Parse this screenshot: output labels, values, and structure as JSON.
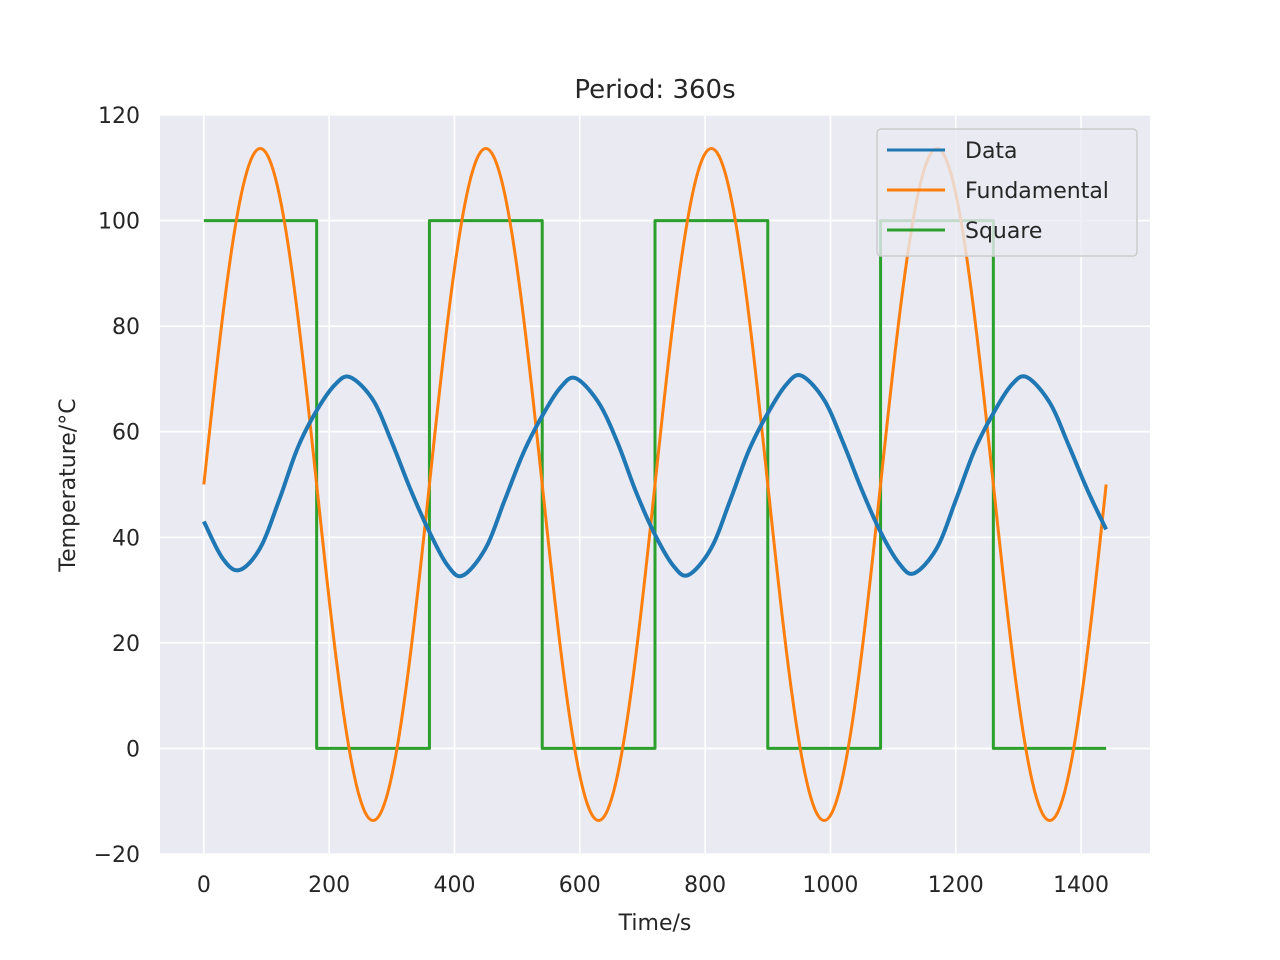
{
  "chart_data": {
    "type": "line",
    "title": "Period: 360s",
    "xlabel": "Time/s",
    "ylabel": "Temperature/°C",
    "xlim": [
      -70,
      1510
    ],
    "ylim": [
      -20,
      120
    ],
    "xticks": [
      0,
      200,
      400,
      600,
      800,
      1000,
      1200,
      1400
    ],
    "yticks": [
      -20,
      0,
      20,
      40,
      60,
      80,
      100,
      120
    ],
    "xtick_labels": [
      "0",
      "200",
      "400",
      "600",
      "800",
      "1000",
      "1200",
      "1400"
    ],
    "ytick_labels": [
      "−20",
      "0",
      "20",
      "40",
      "60",
      "80",
      "100",
      "120"
    ],
    "grid": true,
    "background": "#eaeaf2",
    "legend_position": "top-right",
    "series": [
      {
        "name": "Data",
        "color": "#1f77b4",
        "x": [
          0,
          30,
          57,
          90,
          120,
          150,
          180,
          210,
          234,
          270,
          300,
          330,
          360,
          390,
          414,
          450,
          480,
          510,
          540,
          570,
          594,
          630,
          660,
          690,
          720,
          750,
          774,
          810,
          840,
          870,
          900,
          930,
          954,
          990,
          1020,
          1050,
          1080,
          1110,
          1134,
          1170,
          1200,
          1230,
          1260,
          1290,
          1314,
          1350,
          1380,
          1410,
          1440
        ],
        "y": [
          43,
          36,
          33.8,
          38,
          47,
          57,
          64,
          69,
          70.3,
          66,
          58,
          49,
          41,
          34.5,
          32.8,
          38,
          47,
          56,
          63,
          68.5,
          70.1,
          65.5,
          58,
          48.5,
          40.5,
          34.5,
          32.9,
          38,
          47,
          56.5,
          63.5,
          69,
          70.6,
          66,
          58,
          49,
          41,
          35,
          33.2,
          38,
          47,
          56.5,
          63.5,
          69,
          70.3,
          65.5,
          57.5,
          49,
          41.5
        ]
      },
      {
        "name": "Fundamental",
        "color": "#ff7f0e",
        "function": "sine",
        "offset": 50,
        "amplitude": 63.66,
        "period": 360,
        "x_start": 0,
        "x_end": 1440
      },
      {
        "name": "Square",
        "color": "#2ca02c",
        "x": [
          0,
          180,
          180,
          360,
          360,
          540,
          540,
          720,
          720,
          900,
          900,
          1080,
          1080,
          1260,
          1260,
          1440
        ],
        "y": [
          100,
          100,
          0,
          0,
          100,
          100,
          0,
          0,
          100,
          100,
          0,
          0,
          100,
          100,
          0,
          0
        ]
      }
    ]
  }
}
